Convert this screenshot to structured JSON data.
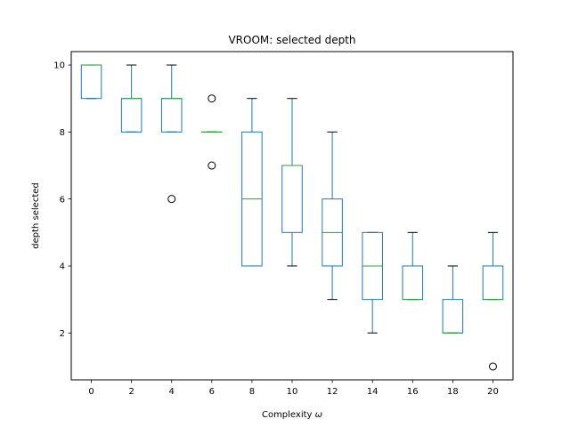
{
  "chart_data": {
    "type": "box",
    "title": "VROOM: selected depth",
    "xlabel": "Complexity",
    "xlabel_symbol": "ω",
    "ylabel": "depth selected",
    "categories": [
      "0",
      "2",
      "4",
      "6",
      "8",
      "10",
      "12",
      "14",
      "16",
      "18",
      "20"
    ],
    "yticks": [
      "2",
      "4",
      "6",
      "8",
      "10"
    ],
    "ylim": [
      0.6,
      10.4
    ],
    "grid": false,
    "box_color": "#1f77b4",
    "median_color": "#2ca02c",
    "boxes": [
      {
        "x": "0",
        "whisker_low": 9,
        "q1": 9,
        "median": 10,
        "q3": 10,
        "whisker_high": 10,
        "outliers": []
      },
      {
        "x": "2",
        "whisker_low": 8,
        "q1": 8,
        "median": 9,
        "q3": 9,
        "whisker_high": 10,
        "outliers": []
      },
      {
        "x": "4",
        "whisker_low": 8,
        "q1": 8,
        "median": 9,
        "q3": 9,
        "whisker_high": 10,
        "outliers": [
          6
        ]
      },
      {
        "x": "6",
        "whisker_low": 8,
        "q1": 8,
        "median": 8,
        "q3": 8,
        "whisker_high": 8,
        "outliers": [
          9,
          7
        ]
      },
      {
        "x": "8",
        "whisker_low": 4,
        "q1": 4,
        "median": 6,
        "q3": 8,
        "whisker_high": 9,
        "outliers": []
      },
      {
        "x": "10",
        "whisker_low": 4,
        "q1": 5,
        "median": 7,
        "q3": 7,
        "whisker_high": 9,
        "outliers": []
      },
      {
        "x": "12",
        "whisker_low": 3,
        "q1": 4,
        "median": 5,
        "q3": 6,
        "whisker_high": 8,
        "outliers": []
      },
      {
        "x": "14",
        "whisker_low": 2,
        "q1": 3,
        "median": 4,
        "q3": 5,
        "whisker_high": 5,
        "outliers": []
      },
      {
        "x": "16",
        "whisker_low": 3,
        "q1": 3,
        "median": 3,
        "q3": 4,
        "whisker_high": 5,
        "outliers": []
      },
      {
        "x": "18",
        "whisker_low": 2,
        "q1": 2,
        "median": 2,
        "q3": 3,
        "whisker_high": 4,
        "outliers": []
      },
      {
        "x": "20",
        "whisker_low": 3,
        "q1": 3,
        "median": 3,
        "q3": 4,
        "whisker_high": 5,
        "outliers": [
          1
        ]
      }
    ]
  }
}
